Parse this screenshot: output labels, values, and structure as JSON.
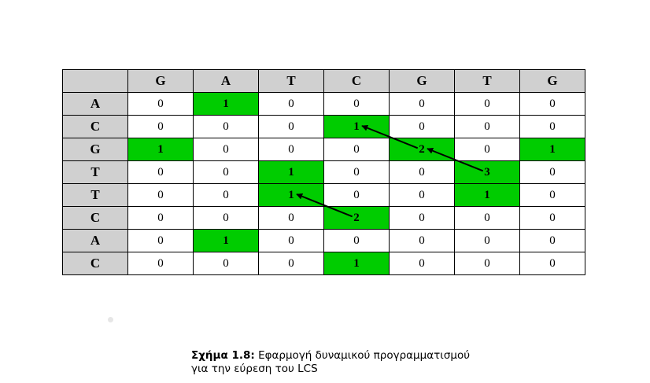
{
  "table": {
    "column_headers": [
      "G",
      "A",
      "T",
      "C",
      "G",
      "T",
      "G"
    ],
    "rows": [
      {
        "label": "A",
        "cells": [
          "0",
          "1",
          "0",
          "0",
          "0",
          "0",
          "0"
        ],
        "highlight": [
          1
        ]
      },
      {
        "label": "C",
        "cells": [
          "0",
          "0",
          "0",
          "1",
          "0",
          "0",
          "0"
        ],
        "highlight": [
          3
        ]
      },
      {
        "label": "G",
        "cells": [
          "1",
          "0",
          "0",
          "0",
          "2",
          "0",
          "1"
        ],
        "highlight": [
          0,
          4,
          6
        ]
      },
      {
        "label": "T",
        "cells": [
          "0",
          "0",
          "1",
          "0",
          "0",
          "3",
          "0"
        ],
        "highlight": [
          2,
          5
        ]
      },
      {
        "label": "T",
        "cells": [
          "0",
          "0",
          "1",
          "0",
          "0",
          "1",
          "0"
        ],
        "highlight": [
          2,
          5
        ]
      },
      {
        "label": "C",
        "cells": [
          "0",
          "0",
          "0",
          "2",
          "0",
          "0",
          "0"
        ],
        "highlight": [
          3
        ]
      },
      {
        "label": "A",
        "cells": [
          "0",
          "1",
          "0",
          "0",
          "0",
          "0",
          "0"
        ],
        "highlight": [
          1
        ]
      },
      {
        "label": "C",
        "cells": [
          "0",
          "0",
          "0",
          "1",
          "0",
          "0",
          "0"
        ],
        "highlight": [
          3
        ]
      }
    ],
    "arrows": [
      {
        "from_row": 2,
        "from_col": 4,
        "to_row": 1,
        "to_col": 3
      },
      {
        "from_row": 3,
        "from_col": 5,
        "to_row": 2,
        "to_col": 4
      },
      {
        "from_row": 5,
        "from_col": 3,
        "to_row": 4,
        "to_col": 2
      }
    ],
    "colors": {
      "header": "#d0d0d0",
      "highlight": "#00cc00",
      "border": "#000000"
    }
  },
  "caption": {
    "label": "Σχήμα 1.8:",
    "line1": "Εφαρμογή δυναμικού προγραμματισμού",
    "line2": "για την εύρεση του LCS"
  }
}
